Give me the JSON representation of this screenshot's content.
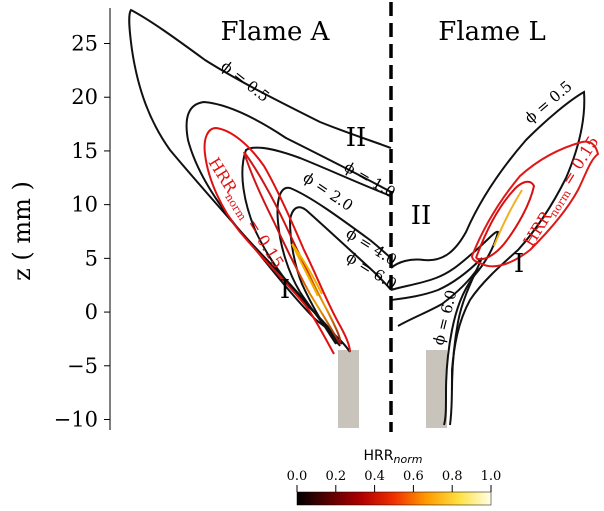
{
  "chart_data": {
    "type": "contour",
    "ylabel": "z ( mm )",
    "ylim": [
      -11,
      28
    ],
    "yticks": [
      -10,
      -5,
      0,
      5,
      10,
      15,
      20,
      25
    ],
    "panel_labels": [
      "Flame A",
      "Flame L"
    ],
    "region_labels": {
      "flame_a_upper": "II",
      "flame_a_lower": "I",
      "flame_l_upper": "II",
      "flame_l_lower": "I"
    },
    "equivalence_ratio_contours": {
      "flame_a": [
        "ϕ = 0.5",
        "ϕ = 1.0",
        "ϕ = 2.0",
        "ϕ = 4.0",
        "ϕ = 6.0"
      ],
      "flame_l": [
        "ϕ = 0.5",
        "ϕ = 6.0"
      ]
    },
    "hrr_contour": {
      "base": "HRR",
      "sub": "norm",
      "suffix": " = 0.15",
      "value": 0.15
    },
    "colorbar": {
      "title_base": "HRR",
      "title_sub": "norm",
      "ticks": [
        "0.0",
        "0.2",
        "0.4",
        "0.6",
        "0.8",
        "1.0"
      ],
      "range": [
        0,
        1
      ],
      "colormap": "hot",
      "colors": [
        "#000000",
        "#5a0000",
        "#b00000",
        "#f03000",
        "#ff9a00",
        "#ffe040",
        "#ffffe8"
      ]
    },
    "divider_color": "#000000",
    "nozzle_color": "#c8c4bb"
  }
}
